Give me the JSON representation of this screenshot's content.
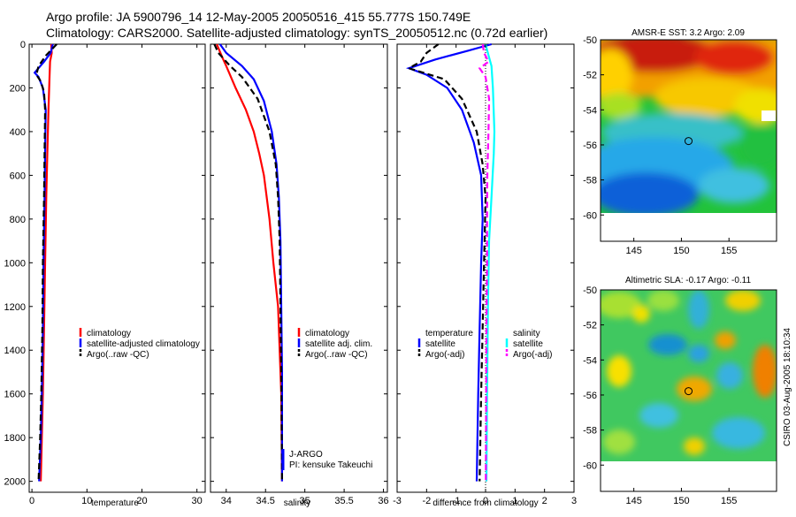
{
  "header": {
    "line1": "Argo profile: JA 5900796_14 12-May-2005 20050516_415 55.777S 150.749E",
    "line2": "Climatology: CARS2000. Satellite-adjusted climatology: synTS_20050512.nc (0.72d earlier)"
  },
  "side_stamp": "CSIRO 03-Aug-2005 18:10:34",
  "colors": {
    "climatology": "#ff0000",
    "satellite": "#0000ff",
    "argo": "#000000",
    "salinity_sat": "#00ffff",
    "salinity_argo": "#ff00ff"
  },
  "chart_data": [
    {
      "id": "temperature",
      "type": "line",
      "xlabel": "temperature",
      "ylabel": "",
      "xlim": [
        -0.5,
        31.5
      ],
      "ylim": [
        2050,
        0
      ],
      "xticks": [
        0,
        10,
        20,
        30
      ],
      "xtick_labels": [
        "0",
        "10",
        "20",
        "30"
      ],
      "yticks": [
        0,
        200,
        400,
        600,
        800,
        1000,
        1200,
        1400,
        1600,
        1800,
        2000
      ],
      "ytick_labels": [
        "0",
        "200",
        "400",
        "600",
        "800",
        "1000",
        "1200",
        "1400",
        "1600",
        "1800",
        "2000"
      ],
      "legend": [
        "climatology",
        "satellite-adjusted climatology",
        "Argo(..raw -QC)"
      ],
      "series": [
        {
          "name": "climatology",
          "color": "#ff0000",
          "dash": false,
          "points": [
            [
              3.5,
              0
            ],
            [
              3.6,
              40
            ],
            [
              3.3,
              80
            ],
            [
              3.2,
              150
            ],
            [
              3.0,
              300
            ],
            [
              2.8,
              500
            ],
            [
              2.6,
              700
            ],
            [
              2.4,
              1000
            ],
            [
              2.2,
              1300
            ],
            [
              2.0,
              1600
            ],
            [
              1.8,
              1800
            ],
            [
              1.6,
              2000
            ]
          ]
        },
        {
          "name": "satellite-adjusted climatology",
          "color": "#0000ff",
          "dash": false,
          "points": [
            [
              3.8,
              0
            ],
            [
              3.4,
              40
            ],
            [
              2.2,
              80
            ],
            [
              0.5,
              130
            ],
            [
              1.2,
              150
            ],
            [
              2.0,
              200
            ],
            [
              2.5,
              300
            ],
            [
              2.4,
              500
            ],
            [
              2.3,
              700
            ],
            [
              2.1,
              1000
            ],
            [
              2.0,
              1300
            ],
            [
              1.8,
              1600
            ],
            [
              1.6,
              1800
            ],
            [
              1.3,
              2000
            ]
          ]
        },
        {
          "name": "Argo(..raw -QC)",
          "color": "#000000",
          "dash": true,
          "points": [
            [
              4.5,
              0
            ],
            [
              2.6,
              50
            ],
            [
              1.2,
              100
            ],
            [
              0.8,
              140
            ],
            [
              1.6,
              170
            ],
            [
              2.2,
              220
            ],
            [
              2.4,
              300
            ],
            [
              2.3,
              500
            ],
            [
              2.2,
              700
            ],
            [
              2.0,
              1000
            ],
            [
              1.9,
              1300
            ],
            [
              1.7,
              1600
            ],
            [
              1.5,
              1800
            ],
            [
              1.2,
              2000
            ]
          ]
        }
      ]
    },
    {
      "id": "salinity",
      "type": "line",
      "xlabel": "salinity",
      "xlim": [
        33.8,
        36.05
      ],
      "ylim": [
        2050,
        0
      ],
      "xticks": [
        34,
        34.5,
        35,
        35.5,
        36
      ],
      "xtick_labels": [
        "34",
        "34.5",
        "35",
        "35.5",
        "36"
      ],
      "legend": [
        "climatology",
        "satellite adj. clim.",
        "Argo(..raw -QC)"
      ],
      "annotations": [
        "J-ARGO",
        "PI: kensuke Takeuchi"
      ],
      "series": [
        {
          "name": "climatology",
          "color": "#ff0000",
          "dash": false,
          "points": [
            [
              33.88,
              0
            ],
            [
              33.95,
              60
            ],
            [
              34.0,
              100
            ],
            [
              34.12,
              200
            ],
            [
              34.25,
              300
            ],
            [
              34.35,
              400
            ],
            [
              34.42,
              500
            ],
            [
              34.48,
              600
            ],
            [
              34.55,
              800
            ],
            [
              34.6,
              1000
            ],
            [
              34.66,
              1200
            ],
            [
              34.68,
              1400
            ],
            [
              34.7,
              1600
            ],
            [
              34.71,
              2000
            ]
          ]
        },
        {
          "name": "satellite adj. clim.",
          "color": "#0000ff",
          "dash": false,
          "points": [
            [
              33.92,
              0
            ],
            [
              34.0,
              40
            ],
            [
              34.2,
              100
            ],
            [
              34.35,
              160
            ],
            [
              34.48,
              260
            ],
            [
              34.58,
              400
            ],
            [
              34.64,
              550
            ],
            [
              34.67,
              700
            ],
            [
              34.69,
              900
            ],
            [
              34.7,
              1200
            ],
            [
              34.71,
              1500
            ],
            [
              34.71,
              2000
            ]
          ]
        },
        {
          "name": "Argo(..raw -QC)",
          "color": "#000000",
          "dash": true,
          "points": [
            [
              33.85,
              0
            ],
            [
              33.9,
              40
            ],
            [
              34.05,
              100
            ],
            [
              34.2,
              150
            ],
            [
              34.4,
              250
            ],
            [
              34.55,
              400
            ],
            [
              34.63,
              550
            ],
            [
              34.66,
              700
            ],
            [
              34.68,
              900
            ],
            [
              34.69,
              1200
            ],
            [
              34.7,
              1500
            ],
            [
              34.71,
              2000
            ]
          ]
        }
      ]
    },
    {
      "id": "difference",
      "type": "line",
      "xlabel": "difference from climatology",
      "xlim": [
        -3,
        3
      ],
      "ylim": [
        2050,
        0
      ],
      "xticks": [
        -3,
        -2,
        -1,
        0,
        1,
        2,
        3
      ],
      "xtick_labels": [
        "-3",
        "-2",
        "-1",
        "0",
        "1",
        "2",
        "3"
      ],
      "legend_left": [
        "temperature",
        "satellite",
        "Argo(-adj)"
      ],
      "legend_right": [
        "salinity",
        "satellite",
        "Argo(-adj)"
      ],
      "series": [
        {
          "name": "temperature satellite",
          "color": "#0000ff",
          "dash": false,
          "points": [
            [
              0.2,
              0
            ],
            [
              -0.6,
              30
            ],
            [
              -1.7,
              70
            ],
            [
              -2.6,
              110
            ],
            [
              -2.0,
              140
            ],
            [
              -1.3,
              200
            ],
            [
              -0.8,
              300
            ],
            [
              -0.4,
              450
            ],
            [
              -0.15,
              600
            ],
            [
              -0.1,
              800
            ],
            [
              -0.15,
              1000
            ],
            [
              -0.2,
              1300
            ],
            [
              -0.25,
              1600
            ],
            [
              -0.3,
              2000
            ]
          ]
        },
        {
          "name": "temperature Argo(-adj)",
          "color": "#000000",
          "dash": true,
          "points": [
            [
              -1.6,
              0
            ],
            [
              -2.0,
              40
            ],
            [
              -2.2,
              80
            ],
            [
              -2.6,
              110
            ],
            [
              -1.4,
              160
            ],
            [
              -0.8,
              250
            ],
            [
              -0.3,
              400
            ],
            [
              -0.1,
              550
            ],
            [
              0.0,
              700
            ],
            [
              -0.05,
              1000
            ],
            [
              -0.1,
              1300
            ],
            [
              -0.15,
              1600
            ],
            [
              -0.2,
              2000
            ]
          ]
        },
        {
          "name": "salinity satellite",
          "color": "#00ffff",
          "dash": false,
          "points": [
            [
              0.0,
              0
            ],
            [
              0.1,
              50
            ],
            [
              0.2,
              100
            ],
            [
              0.25,
              200
            ],
            [
              0.3,
              400
            ],
            [
              0.28,
              500
            ],
            [
              0.2,
              700
            ],
            [
              0.12,
              900
            ],
            [
              0.08,
              1200
            ],
            [
              0.05,
              1600
            ],
            [
              0.03,
              2000
            ]
          ]
        },
        {
          "name": "salinity Argo(-adj)",
          "color": "#ff00ff",
          "dash": true,
          "points": [
            [
              -0.1,
              0
            ],
            [
              -0.05,
              40
            ],
            [
              0.1,
              80
            ],
            [
              -0.2,
              110
            ],
            [
              0.0,
              150
            ],
            [
              0.12,
              250
            ],
            [
              0.1,
              400
            ],
            [
              0.06,
              600
            ],
            [
              0.05,
              800
            ],
            [
              0.05,
              1000
            ],
            [
              0.03,
              1300
            ],
            [
              0.02,
              1600
            ],
            [
              0.01,
              2000
            ]
          ]
        }
      ]
    },
    {
      "id": "sst_map",
      "type": "heatmap",
      "title": "AMSR-E SST: 3.2  Argo: 2.09",
      "xticks": [
        145,
        150,
        155
      ],
      "xtick_labels": [
        "145",
        "150",
        "155"
      ],
      "yticks": [
        -50,
        -52,
        -54,
        -56,
        -58,
        -60
      ],
      "ytick_labels": [
        "-50",
        "-52",
        "-54",
        "-56",
        "-58",
        "-60"
      ],
      "xlim": [
        141.5,
        160
      ],
      "ylim": [
        -61.5,
        -50
      ],
      "marker": {
        "lon": 150.75,
        "lat": -55.78
      }
    },
    {
      "id": "sla_map",
      "type": "heatmap",
      "title": "Altimetric SLA: -0.17  Argo: -0.11",
      "xticks": [
        145,
        150,
        155
      ],
      "xtick_labels": [
        "145",
        "150",
        "155"
      ],
      "yticks": [
        -50,
        -52,
        -54,
        -56,
        -58,
        -60
      ],
      "ytick_labels": [
        "-50",
        "-52",
        "-54",
        "-56",
        "-58",
        "-60"
      ],
      "xlim": [
        141.5,
        160
      ],
      "ylim": [
        -61.5,
        -50
      ],
      "marker": {
        "lon": 150.75,
        "lat": -55.78
      }
    }
  ]
}
